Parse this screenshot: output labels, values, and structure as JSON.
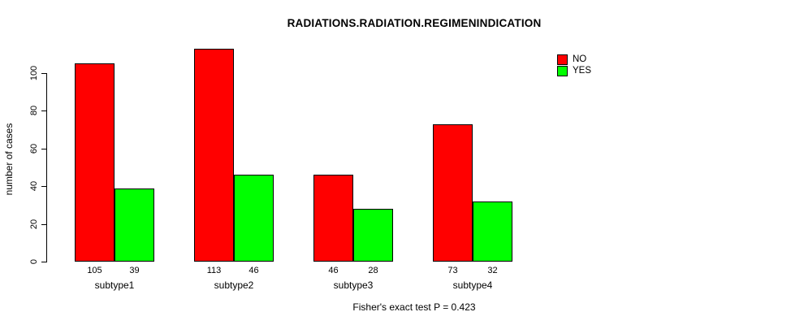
{
  "chart_data": {
    "type": "bar",
    "title": "RADIATIONS.RADIATION.REGIMENINDICATION",
    "ylabel": "number of cases",
    "xlabel": "",
    "categories": [
      "subtype1",
      "subtype2",
      "subtype3",
      "subtype4"
    ],
    "series": [
      {
        "name": "NO",
        "color": "#ff0000",
        "values": [
          105,
          113,
          46,
          73
        ]
      },
      {
        "name": "YES",
        "color": "#00ff00",
        "values": [
          39,
          46,
          28,
          32
        ]
      }
    ],
    "yticks": [
      0,
      20,
      40,
      60,
      80,
      100
    ],
    "ylim": [
      0,
      113
    ],
    "bar_value_labels": [
      [
        105,
        113,
        46,
        73
      ],
      [
        39,
        46,
        28,
        32
      ]
    ],
    "legend_position": "top-right",
    "grid": false,
    "annotation": "Fisher's exact test P = 0.423"
  }
}
